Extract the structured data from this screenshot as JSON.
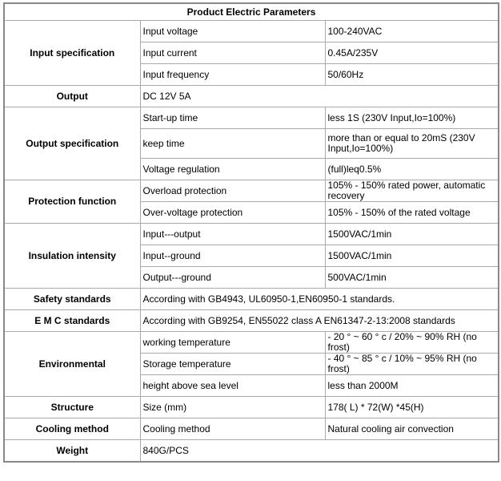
{
  "table": {
    "title": "Product Electric Parameters",
    "groups": [
      {
        "label": "Input specification",
        "rows": [
          [
            "Input voltage",
            "100-240VAC"
          ],
          [
            "Input current",
            "0.45A/235V"
          ],
          [
            "Input frequency",
            "50/60Hz"
          ]
        ]
      },
      {
        "label": "Output",
        "value": "DC 12V 5A"
      },
      {
        "label": "Output specification",
        "rows": [
          [
            "Start-up time",
            "less 1S (230V Input,Io=100%)"
          ],
          [
            "keep time",
            "more than or equal to 20mS (230V Input,Io=100%)"
          ],
          [
            "Voltage regulation",
            "(full)leq0.5%"
          ]
        ]
      },
      {
        "label": "Protection function",
        "rows": [
          [
            "Overload protection",
            "105% - 150% rated power, automatic recovery"
          ],
          [
            "Over-voltage protection",
            "105% - 150% of the rated voltage"
          ]
        ]
      },
      {
        "label": "Insulation intensity",
        "rows": [
          [
            "Input---output",
            "1500VAC/1min"
          ],
          [
            "Input--ground",
            "1500VAC/1min"
          ],
          [
            "Output---ground",
            "500VAC/1min"
          ]
        ]
      },
      {
        "label": "Safety standards",
        "value": "According with GB4943, UL60950-1,EN60950-1 standards."
      },
      {
        "label": "E M C standards",
        "value": "According with GB9254, EN55022 class A EN61347-2-13:2008 standards"
      },
      {
        "label": "Environmental",
        "rows": [
          [
            "working temperature",
            "- 20 ° ~ 60 ° c / 20% ~ 90% RH (no frost)"
          ],
          [
            "Storage temperature",
            "- 40 ° ~ 85 ° c / 10% ~ 95% RH (no frost)"
          ],
          [
            "height above sea level",
            "less than 2000M"
          ]
        ]
      },
      {
        "label": "Structure",
        "rows": [
          [
            "Size (mm)",
            "178( L) * 72(W) *45(H)"
          ]
        ]
      },
      {
        "label": "Cooling method",
        "rows": [
          [
            "Cooling method",
            "Natural cooling air convection"
          ]
        ]
      },
      {
        "label": "Weight",
        "value": "840G/PCS"
      }
    ]
  }
}
